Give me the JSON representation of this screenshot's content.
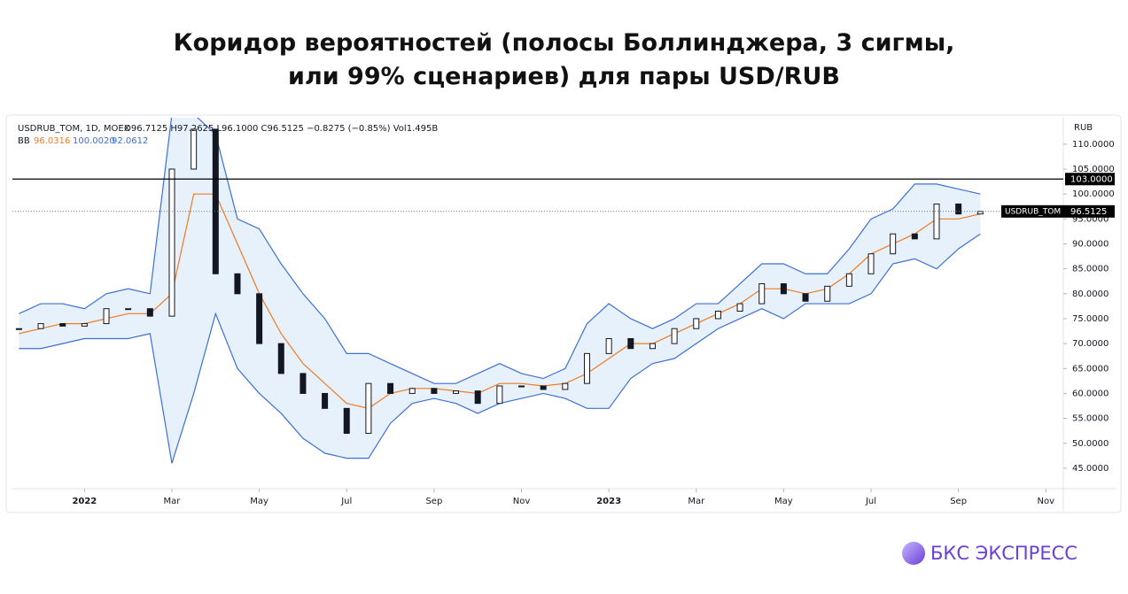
{
  "title": [
    "Коридор вероятностей (полосы Боллинджера, 3 сигмы,",
    "или 99% сценариев) для пары USD/RUB"
  ],
  "brand": "БКС ЭКСПРЕСС",
  "chart_data": {
    "type": "candlestick",
    "symbol": "USDRUB_TOM, 1D, MOEX",
    "ohlc_text": "O96.7125 H97.2625 L96.1000 C96.5125 −0.8275 (−0.85%) Vol1.495B",
    "bb_label": "BB",
    "bb_values": [
      {
        "value": 96.0316,
        "label": "96.0316"
      },
      {
        "value": 100.002,
        "label": "100.0020"
      },
      {
        "value": 92.0612,
        "label": "92.0612"
      }
    ],
    "y_unit": "RUB",
    "x": [
      -1.5,
      -1,
      -0.5,
      0,
      0.5,
      1,
      1.5,
      2,
      2.5,
      3,
      3.5,
      4,
      4.5,
      5,
      5.5,
      6,
      6.5,
      7,
      7.5,
      8,
      8.5,
      9,
      9.5,
      10,
      10.5,
      11,
      11.5,
      12,
      12.5,
      13,
      13.5,
      14,
      14.5,
      15,
      15.5,
      16,
      16.5,
      17,
      17.5,
      18,
      18.5,
      19,
      19.5,
      20,
      20.5
    ],
    "close": [
      73,
      74,
      73.5,
      74,
      77,
      77,
      75.5,
      105,
      113,
      84,
      80,
      70,
      64,
      60,
      57,
      52,
      62,
      60,
      61,
      60,
      60.5,
      58,
      61.5,
      61.5,
      60.8,
      62,
      68,
      71,
      69,
      70,
      73,
      75,
      76.5,
      78,
      82,
      80,
      78.5,
      81.5,
      84,
      88,
      92,
      91,
      98,
      96,
      96.5
    ],
    "bb_upper": [
      76,
      78,
      78,
      77,
      80,
      81,
      80,
      116,
      116,
      112,
      95,
      93,
      86,
      80,
      75,
      68,
      68,
      66,
      64,
      62,
      62,
      64,
      66,
      64,
      63,
      65,
      74,
      78,
      75,
      73,
      75,
      78,
      78,
      82,
      86,
      86,
      84,
      84,
      89,
      95,
      97,
      102,
      102,
      101,
      100
    ],
    "bb_basis": [
      72,
      73,
      74,
      74,
      75,
      76,
      76,
      80,
      100,
      100,
      90,
      80,
      72,
      66,
      62,
      58,
      57,
      60,
      61,
      61,
      60.5,
      60,
      62,
      62,
      61.5,
      62,
      64,
      67,
      70,
      70,
      72,
      74,
      76,
      78,
      81,
      81,
      80,
      81,
      84,
      88,
      90,
      92,
      95,
      95,
      96
    ],
    "bb_lower": [
      69,
      69,
      70,
      71,
      71,
      71,
      72,
      46,
      60,
      76,
      65,
      60,
      56,
      51,
      48,
      47,
      47,
      54,
      58,
      59,
      58,
      56,
      58,
      59,
      60,
      59,
      57,
      57,
      63,
      66,
      67,
      70,
      73,
      75,
      77,
      75,
      78,
      78,
      78,
      80,
      86,
      87,
      85,
      89,
      92
    ],
    "candle_color": "#131722",
    "band_color": "#3d6fd8",
    "band_fill": "#e6f1fb",
    "basis_color": "#f07a22",
    "xlim": [
      -1.65,
      22.4
    ],
    "ylim": [
      40.9,
      115.3
    ],
    "xticks": [
      {
        "value": 0,
        "label": "2022"
      },
      {
        "value": 2,
        "label": "Mar"
      },
      {
        "value": 4,
        "label": "May"
      },
      {
        "value": 6,
        "label": "Jul"
      },
      {
        "value": 8,
        "label": "Sep"
      },
      {
        "value": 10,
        "label": "Nov"
      },
      {
        "value": 12,
        "label": "2023"
      },
      {
        "value": 14,
        "label": "Mar"
      },
      {
        "value": 16,
        "label": "May"
      },
      {
        "value": 18,
        "label": "Jul"
      },
      {
        "value": 20,
        "label": "Sep"
      },
      {
        "value": 22,
        "label": "Nov"
      }
    ],
    "yticks": [
      {
        "value": 45,
        "label": "45.0000"
      },
      {
        "value": 50,
        "label": "50.0000"
      },
      {
        "value": 55,
        "label": "55.0000"
      },
      {
        "value": 60,
        "label": "60.0000"
      },
      {
        "value": 65,
        "label": "65.0000"
      },
      {
        "value": 70,
        "label": "70.0000"
      },
      {
        "value": 75,
        "label": "75.0000"
      },
      {
        "value": 80,
        "label": "80.0000"
      },
      {
        "value": 85,
        "label": "85.0000"
      },
      {
        "value": 90,
        "label": "90.0000"
      },
      {
        "value": 95,
        "label": "95.0000"
      },
      {
        "value": 100,
        "label": "100.0000"
      },
      {
        "value": 105,
        "label": "105.0000"
      },
      {
        "value": 110,
        "label": "110.0000"
      }
    ],
    "hline": {
      "value": 103,
      "label": "103.0000"
    },
    "last_price": {
      "name": "USDRUB_TOM",
      "value": 96.5125,
      "label": "96.5125"
    }
  }
}
